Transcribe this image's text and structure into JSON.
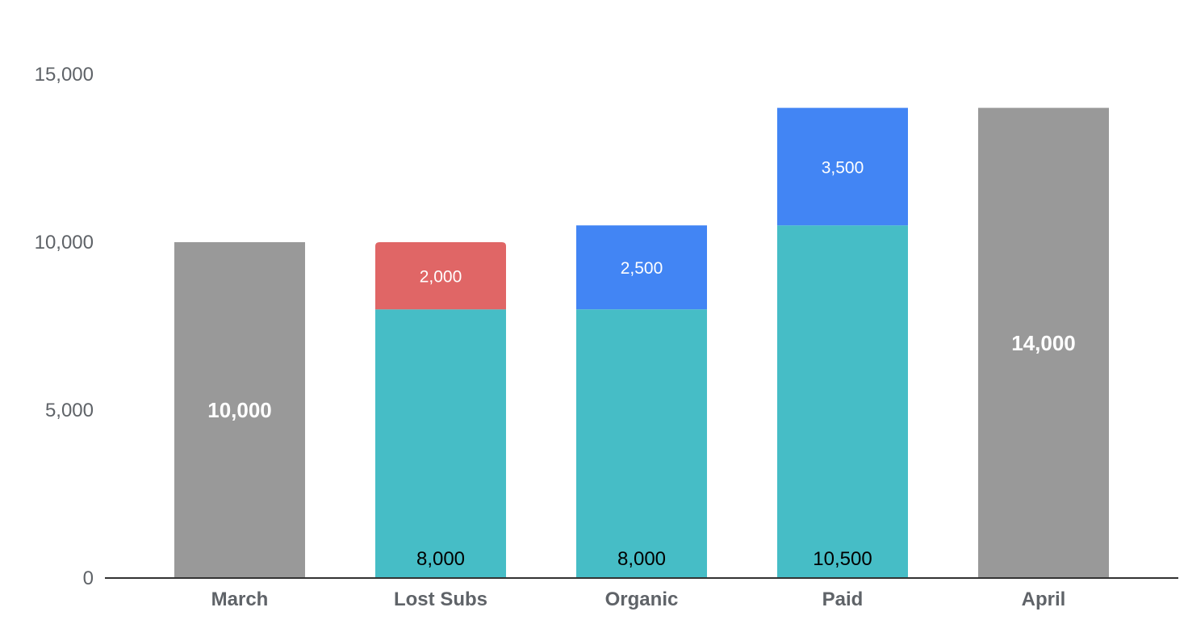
{
  "chart_data": {
    "type": "bar",
    "subtype": "stacked-waterfall",
    "title": "",
    "xlabel": "",
    "ylabel": "",
    "ylim": [
      0,
      15000
    ],
    "yticks": [
      0,
      5000,
      10000,
      15000
    ],
    "ytick_labels": [
      "0",
      "5,000",
      "10,000",
      "15,000"
    ],
    "grid": false,
    "legend": "none",
    "categories": [
      "March",
      "Lost Subs",
      "Organic",
      "Paid",
      "April"
    ],
    "bars": [
      {
        "category": "March",
        "segments": [
          {
            "value": 10000,
            "label": "10,000",
            "color": "#999999",
            "label_style": "white-bold",
            "label_position": "center"
          }
        ]
      },
      {
        "category": "Lost Subs",
        "segments": [
          {
            "value": 8000,
            "label": "8,000",
            "color": "#46bdc6",
            "label_style": "black",
            "label_position": "bottom"
          },
          {
            "value": 2000,
            "label": "2,000",
            "color": "#e06666",
            "label_style": "white",
            "label_position": "center"
          }
        ]
      },
      {
        "category": "Organic",
        "segments": [
          {
            "value": 8000,
            "label": "8,000",
            "color": "#46bdc6",
            "label_style": "black",
            "label_position": "bottom"
          },
          {
            "value": 2500,
            "label": "2,500",
            "color": "#4285f4",
            "label_style": "white",
            "label_position": "center"
          }
        ]
      },
      {
        "category": "Paid",
        "segments": [
          {
            "value": 10500,
            "label": "10,500",
            "color": "#46bdc6",
            "label_style": "black",
            "label_position": "bottom"
          },
          {
            "value": 3500,
            "label": "3,500",
            "color": "#4285f4",
            "label_style": "white",
            "label_position": "center"
          }
        ]
      },
      {
        "category": "April",
        "segments": [
          {
            "value": 14000,
            "label": "14,000",
            "color": "#999999",
            "label_style": "white-bold",
            "label_position": "center"
          }
        ]
      }
    ],
    "colors": {
      "total": "#999999",
      "base": "#46bdc6",
      "decrease": "#e06666",
      "increase": "#4285f4",
      "axis": "#333333",
      "tick_text": "#5f6368"
    }
  }
}
